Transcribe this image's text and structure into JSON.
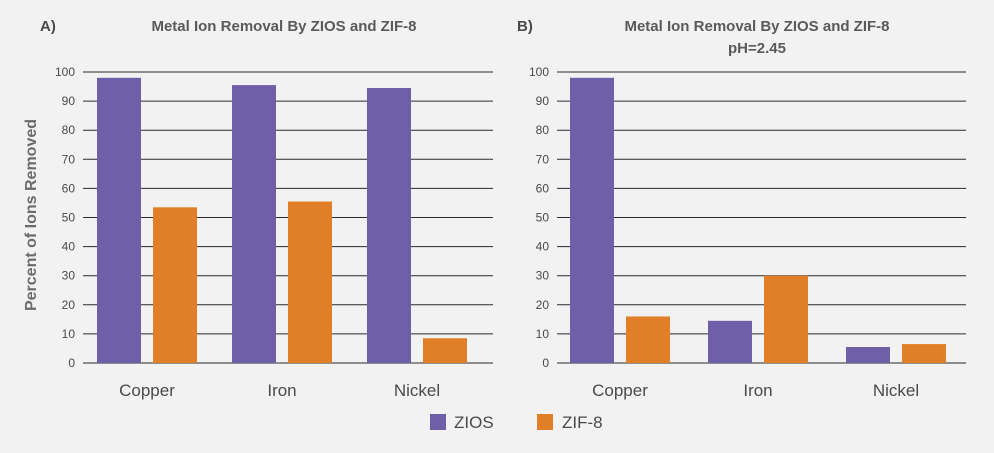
{
  "figure": {
    "ylabel": "Percent of Ions Removed",
    "legend": [
      {
        "label": "ZIOS",
        "color": "#6f5ea8"
      },
      {
        "label": "ZIF-8",
        "color": "#e07f27"
      }
    ]
  },
  "chart_data": [
    {
      "type": "bar",
      "panel_label": "A)",
      "title": "Metal Ion Removal By ZIOS and ZIF-8",
      "subtitle": "",
      "categories": [
        "Copper",
        "Iron",
        "Nickel"
      ],
      "series": [
        {
          "name": "ZIOS",
          "values": [
            98,
            95.5,
            94.5
          ],
          "color": "#6f5ea8"
        },
        {
          "name": "ZIF-8",
          "values": [
            53.5,
            55.5,
            8.5
          ],
          "color": "#e07f27"
        }
      ],
      "ylim": [
        0,
        100
      ],
      "yticks": [
        0,
        10,
        20,
        30,
        40,
        50,
        60,
        70,
        80,
        90,
        100
      ],
      "grid": true
    },
    {
      "type": "bar",
      "panel_label": "B)",
      "title": "Metal Ion Removal By ZIOS and ZIF-8",
      "subtitle": "pH=2.45",
      "categories": [
        "Copper",
        "Iron",
        "Nickel"
      ],
      "series": [
        {
          "name": "ZIOS",
          "values": [
            98,
            14.5,
            5.5
          ],
          "color": "#6f5ea8"
        },
        {
          "name": "ZIF-8",
          "values": [
            16,
            30,
            6.5
          ],
          "color": "#e07f27"
        }
      ],
      "ylim": [
        0,
        100
      ],
      "yticks": [
        0,
        10,
        20,
        30,
        40,
        50,
        60,
        70,
        80,
        90,
        100
      ],
      "grid": true
    }
  ]
}
